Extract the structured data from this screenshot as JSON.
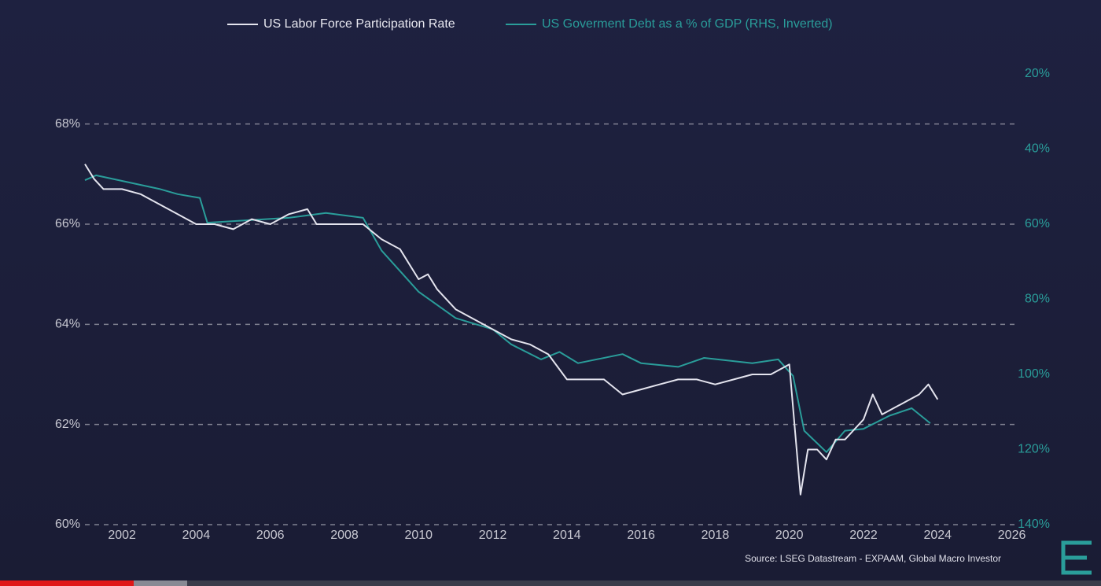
{
  "chart_data": {
    "type": "line",
    "legend": "top",
    "series": [
      {
        "name": "US Labor Force Participation Rate",
        "color": "#e4e4ee",
        "x": [
          2001.0,
          2001.25,
          2001.5,
          2002.0,
          2002.5,
          2003.0,
          2003.5,
          2004.0,
          2004.5,
          2005.0,
          2005.5,
          2006.0,
          2006.5,
          2007.0,
          2007.25,
          2007.5,
          2008.0,
          2008.5,
          2009.0,
          2009.5,
          2010.0,
          2010.25,
          2010.5,
          2011.0,
          2011.5,
          2012.0,
          2012.5,
          2013.0,
          2013.5,
          2014.0,
          2014.5,
          2015.0,
          2015.5,
          2016.0,
          2016.5,
          2017.0,
          2017.5,
          2018.0,
          2018.5,
          2019.0,
          2019.5,
          2020.0,
          2020.3,
          2020.5,
          2020.75,
          2021.0,
          2021.25,
          2021.5,
          2022.0,
          2022.25,
          2022.5,
          2023.0,
          2023.5,
          2023.75,
          2024.0
        ],
        "values": [
          67.2,
          66.9,
          66.7,
          66.7,
          66.6,
          66.4,
          66.2,
          66.0,
          66.0,
          65.9,
          66.1,
          66.0,
          66.2,
          66.3,
          66.0,
          66.0,
          66.0,
          66.0,
          65.7,
          65.5,
          64.9,
          65.0,
          64.7,
          64.3,
          64.1,
          63.9,
          63.7,
          63.6,
          63.4,
          62.9,
          62.9,
          62.9,
          62.6,
          62.7,
          62.8,
          62.9,
          62.9,
          62.8,
          62.9,
          63.0,
          63.0,
          63.2,
          60.6,
          61.5,
          61.5,
          61.3,
          61.7,
          61.7,
          62.1,
          62.6,
          62.2,
          62.4,
          62.6,
          62.8,
          62.5
        ]
      },
      {
        "name": "US Goverment Debt as a % of GDP (RHS, Inverted)",
        "color": "#2a9d9a",
        "axis": "y2",
        "x": [
          2001.0,
          2001.3,
          2003.0,
          2003.5,
          2004.1,
          2004.3,
          2006.5,
          2007.5,
          2008.5,
          2009.0,
          2010.0,
          2011.0,
          2012.0,
          2012.5,
          2013.3,
          2013.8,
          2014.3,
          2015.5,
          2016.0,
          2017.0,
          2017.7,
          2019.0,
          2019.7,
          2020.1,
          2020.4,
          2021.0,
          2021.5,
          2022.0,
          2022.7,
          2023.3,
          2023.8
        ],
        "values": [
          48.3,
          47,
          50.6,
          52,
          53,
          59.6,
          58.3,
          57,
          58.3,
          67,
          78,
          85,
          88,
          92,
          96,
          94,
          97,
          94.6,
          97,
          98,
          95.6,
          97,
          96,
          100.4,
          115,
          120.7,
          115,
          114.5,
          111,
          109,
          113
        ]
      }
    ],
    "xlim": [
      2001,
      2026.2
    ],
    "xticks": [
      2002,
      2004,
      2006,
      2008,
      2010,
      2012,
      2014,
      2016,
      2018,
      2020,
      2022,
      2024,
      2026
    ],
    "ylim": [
      60,
      69
    ],
    "yticks": [
      {
        "value": 60,
        "label": "60%"
      },
      {
        "value": 62,
        "label": "62%"
      },
      {
        "value": 64,
        "label": "64%"
      },
      {
        "value": 66,
        "label": "66%"
      },
      {
        "value": 68,
        "label": "68%"
      }
    ],
    "y2lim": [
      20,
      140
    ],
    "y2_inverted": true,
    "y2ticks": [
      {
        "value": 20,
        "label": "20%"
      },
      {
        "value": 40,
        "label": "40%"
      },
      {
        "value": 60,
        "label": "60%"
      },
      {
        "value": 80,
        "label": "80%"
      },
      {
        "value": 100,
        "label": "100%"
      },
      {
        "value": 120,
        "label": "120%"
      },
      {
        "value": 140,
        "label": "140%"
      }
    ],
    "grid": true,
    "source": "Source: LSEG Datastream - EXPAAM, Global Macro Investor"
  }
}
